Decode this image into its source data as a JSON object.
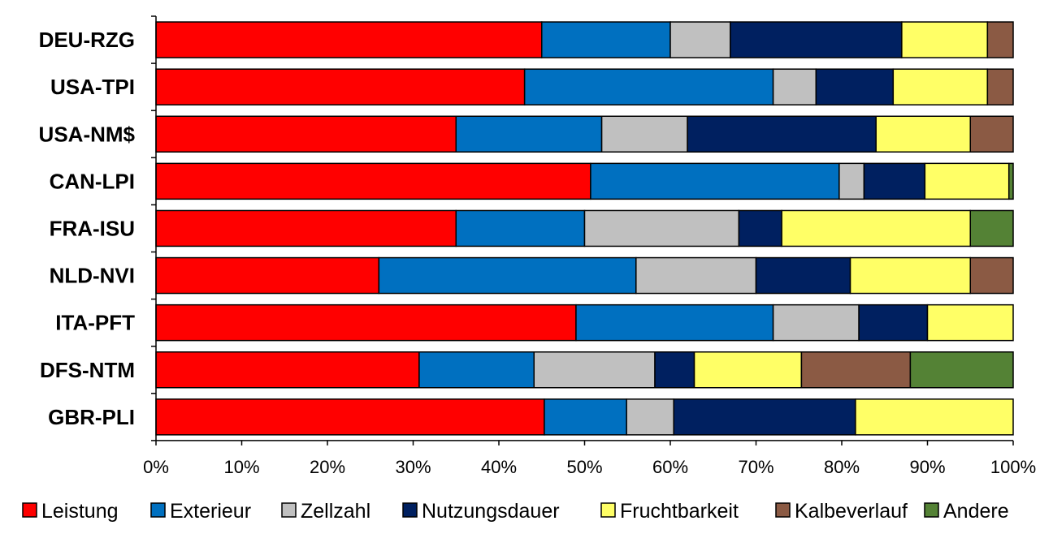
{
  "chart_data": {
    "type": "bar",
    "orientation": "horizontal",
    "stacked": true,
    "normalized": true,
    "categories": [
      "DEU-RZG",
      "USA-TPI",
      "USA-NM$",
      "CAN-LPI",
      "FRA-ISU",
      "NLD-NVI",
      "ITA-PFT",
      "DFS-NTM",
      "GBR-PLI"
    ],
    "series": [
      {
        "name": "Leistung",
        "color": "#ff0000",
        "values": [
          45,
          43,
          35,
          50.7,
          35,
          26,
          49,
          30.7,
          45.3
        ]
      },
      {
        "name": "Exterieur",
        "color": "#0070c0",
        "values": [
          15,
          29,
          17,
          29,
          15,
          30,
          23,
          13.4,
          9.6
        ]
      },
      {
        "name": "Zellzahl",
        "color": "#c0c0c0",
        "values": [
          7,
          5,
          10,
          2.9,
          18,
          14,
          10,
          14.1,
          5.5
        ]
      },
      {
        "name": "Nutzungsdauer",
        "color": "#002060",
        "values": [
          20,
          9,
          22,
          7.1,
          5,
          11,
          8,
          4.6,
          21.2
        ]
      },
      {
        "name": "Fruchtbarkeit",
        "color": "#ffff66",
        "values": [
          10,
          11,
          11,
          9.8,
          22,
          14,
          10,
          12.5,
          18.4
        ]
      },
      {
        "name": "Kalbeverlauf",
        "color": "#8b5a44",
        "values": [
          3,
          3,
          5,
          0,
          0,
          5,
          0,
          12.7,
          0
        ]
      },
      {
        "name": "Andere",
        "color": "#548235",
        "values": [
          0,
          0,
          0,
          0.5,
          5,
          0,
          0,
          12,
          0
        ]
      }
    ],
    "x_ticks": [
      "0%",
      "10%",
      "20%",
      "30%",
      "40%",
      "50%",
      "60%",
      "70%",
      "80%",
      "90%",
      "100%"
    ],
    "xlim": [
      0,
      100
    ],
    "grid": false,
    "legend_position": "bottom"
  }
}
